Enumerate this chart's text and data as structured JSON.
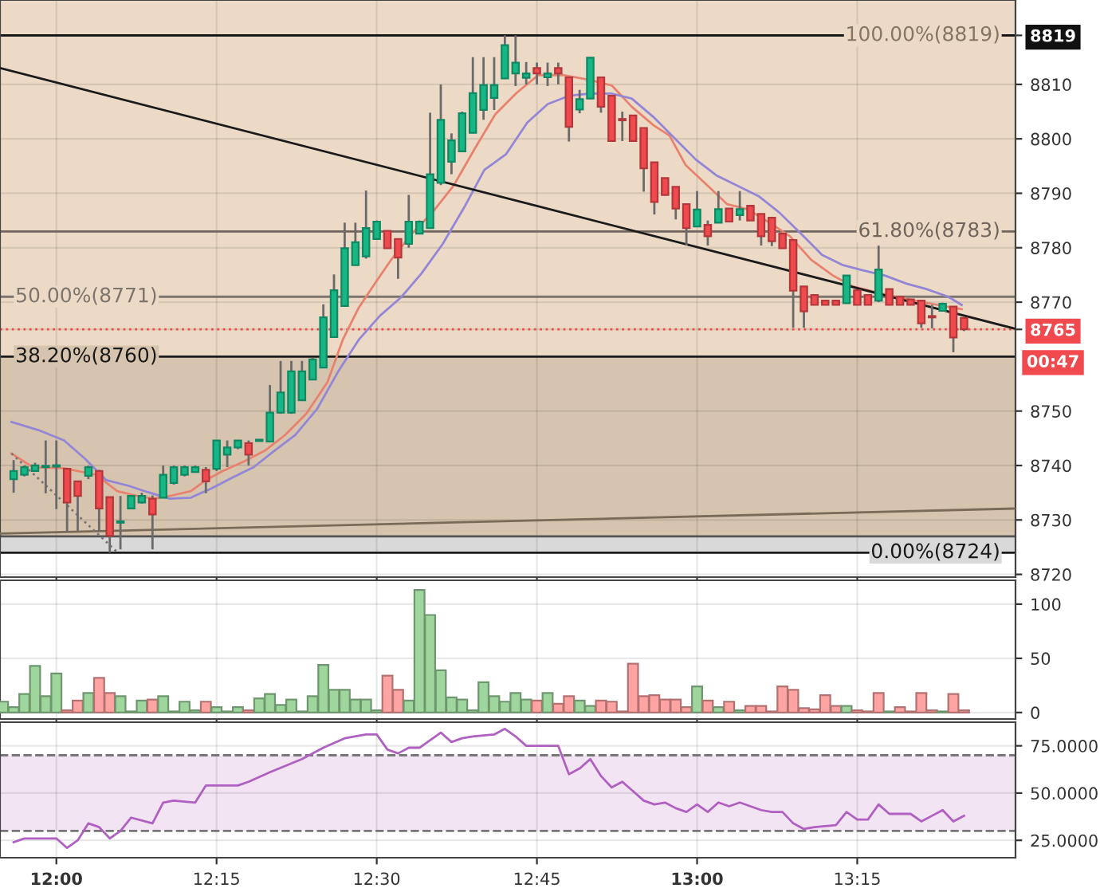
{
  "chart_data": [
    {
      "type": "candlestick",
      "tick_labels": "y",
      "grid": true,
      "legend": false,
      "xlim": [
        11.912,
        13.497
      ],
      "ylim": [
        8719.5,
        8825.5
      ],
      "xticks": [
        {
          "value": 12,
          "label": null
        },
        {
          "value": 12.25,
          "label": null
        },
        {
          "value": 12.5,
          "label": null
        },
        {
          "value": 12.75,
          "label": null
        },
        {
          "value": 13,
          "label": null
        },
        {
          "value": 13.25,
          "label": null
        }
      ],
      "yticks": [
        8720,
        8730,
        8740,
        8750,
        8765,
        8770,
        8780,
        8790,
        8800,
        8810,
        8819
      ],
      "x": [
        11.9333,
        11.95,
        11.9667,
        11.9833,
        12,
        12.0167,
        12.0333,
        12.05,
        12.0667,
        12.0833,
        12.1,
        12.1167,
        12.1333,
        12.15,
        12.1667,
        12.1833,
        12.2,
        12.2167,
        12.2333,
        12.25,
        12.2667,
        12.2833,
        12.3,
        12.3167,
        12.3333,
        12.35,
        12.3667,
        12.3833,
        12.4,
        12.4167,
        12.4333,
        12.45,
        12.4667,
        12.4833,
        12.5,
        12.5167,
        12.5333,
        12.55,
        12.5667,
        12.5833,
        12.6,
        12.6167,
        12.6333,
        12.65,
        12.6667,
        12.6833,
        12.7,
        12.7167,
        12.7333,
        12.75,
        12.7667,
        12.7833,
        12.8,
        12.8167,
        12.8333,
        12.85,
        12.8667,
        12.8833,
        12.9,
        12.9167,
        12.9333,
        12.95,
        12.9667,
        12.9833,
        13,
        13.0167,
        13.0333,
        13.05,
        13.0667,
        13.0833,
        13.1,
        13.1167,
        13.1333,
        13.15,
        13.1667,
        13.1833,
        13.2,
        13.2167,
        13.2333,
        13.25,
        13.2667,
        13.2833,
        13.3,
        13.3167,
        13.3333,
        13.35,
        13.3667,
        13.3833,
        13.4,
        13.4167
      ],
      "ohlc": [
        [
          8737.5,
          8741,
          8735,
          8739
        ],
        [
          8738.3,
          8740,
          8738,
          8739.7
        ],
        [
          8739,
          8740.5,
          8739,
          8740
        ],
        [
          8739.7,
          8744.6,
          8734.9,
          8739.8
        ],
        [
          8739.8,
          8744.6,
          8732,
          8739.9
        ],
        [
          8739.4,
          8739.4,
          8727.8,
          8733.2
        ],
        [
          8737.1,
          8737.1,
          8728,
          8734.4
        ],
        [
          8738.1,
          8740,
          8737.5,
          8739.7
        ],
        [
          8739,
          8739.2,
          8727.8,
          8732.1
        ],
        [
          8734.2,
          8734.2,
          8724,
          8727.1
        ],
        [
          8729.5,
          8734.4,
          8724.6,
          8729.6
        ],
        [
          8732.1,
          8734.4,
          8732,
          8734.4
        ],
        [
          8733.2,
          8735,
          8733,
          8734.4
        ],
        [
          8733.9,
          8734.5,
          8724.6,
          8731
        ],
        [
          8734.1,
          8740,
          8734,
          8738.3
        ],
        [
          8736.8,
          8740,
          8736.5,
          8739.7
        ],
        [
          8738.3,
          8740,
          8738,
          8739.7
        ],
        [
          8738.8,
          8740,
          8738.8,
          8739.7
        ],
        [
          8739.2,
          8739.7,
          8734.9,
          8737.1
        ],
        [
          8739.4,
          8744.6,
          8739,
          8744.6
        ],
        [
          8742,
          8744.6,
          8739.7,
          8743.3
        ],
        [
          8743.3,
          8744.6,
          8743,
          8744.6
        ],
        [
          8744.1,
          8744.6,
          8740,
          8742
        ],
        [
          8744.5,
          8744.8,
          8744.4,
          8744.7
        ],
        [
          8744.4,
          8754.8,
          8744.4,
          8749.7
        ],
        [
          8749.7,
          8759.2,
          8749.5,
          8753.4
        ],
        [
          8749.7,
          8759.2,
          8749.5,
          8757.3
        ],
        [
          8752,
          8759.2,
          8751.9,
          8757.3
        ],
        [
          8755.8,
          8759.8,
          8755.8,
          8759.5
        ],
        [
          8758,
          8769.6,
          8758,
          8767.2
        ],
        [
          8763.6,
          8775.1,
          8763.6,
          8772.2
        ],
        [
          8769.3,
          8784.6,
          8769.3,
          8779.9
        ],
        [
          8776.8,
          8784.6,
          8776.8,
          8781
        ],
        [
          8778.4,
          8790.5,
          8778,
          8783.6
        ],
        [
          8781.6,
          8785,
          8781.6,
          8784.8
        ],
        [
          8783.1,
          8783.1,
          8779.9,
          8779.9
        ],
        [
          8781.6,
          8781.6,
          8774.3,
          8778.2
        ],
        [
          8780.7,
          8789.7,
          8780,
          8784.8
        ],
        [
          8782.6,
          8785,
          8782.6,
          8784.8
        ],
        [
          8783.6,
          8804.8,
          8783.6,
          8793.5
        ],
        [
          8791.9,
          8810,
          8791.5,
          8803.5
        ],
        [
          8795.8,
          8801,
          8793.5,
          8799.7
        ],
        [
          8797.7,
          8805,
          8797.7,
          8804.7
        ],
        [
          8801.1,
          8815,
          8801,
          8808.4
        ],
        [
          8805.3,
          8815,
          8803.5,
          8809.9
        ],
        [
          8807.5,
          8815,
          8805.3,
          8809.9
        ],
        [
          8811.1,
          8819,
          8811,
          8817.2
        ],
        [
          8812,
          8819,
          8809.7,
          8814
        ],
        [
          8811.2,
          8814.1,
          8810,
          8812
        ],
        [
          8813,
          8814,
          8810,
          8812
        ],
        [
          8811.3,
          8814,
          8809.7,
          8812
        ],
        [
          8813,
          8814,
          8810,
          8812
        ],
        [
          8811.3,
          8811.3,
          8799.5,
          8802.2
        ],
        [
          8805.4,
          8809,
          8804.7,
          8807.3
        ],
        [
          8807.4,
          8814.9,
          8807.4,
          8814.9
        ],
        [
          8811.3,
          8811.3,
          8804.8,
          8805.9
        ],
        [
          8807.9,
          8808,
          8799.6,
          8799.6
        ],
        [
          8803.6,
          8805,
          8799.6,
          8803.4
        ],
        [
          8804.3,
          8804.3,
          8799.6,
          8799.6
        ],
        [
          8802,
          8802,
          8790.3,
          8794.6
        ],
        [
          8795.7,
          8795.7,
          8786.1,
          8788.4
        ],
        [
          8792.8,
          8792.8,
          8789.7,
          8789.7
        ],
        [
          8791.2,
          8791.2,
          8785.2,
          8787.2
        ],
        [
          8788,
          8788,
          8780.4,
          8783.6
        ],
        [
          8783.9,
          8790.4,
          8783.9,
          8787
        ],
        [
          8784.2,
          8785,
          8780.4,
          8782.1
        ],
        [
          8784.6,
          8790.4,
          8784.6,
          8787.1
        ],
        [
          8787.2,
          8787.2,
          8784.8,
          8784.8
        ],
        [
          8786,
          8790.4,
          8785,
          8787.1
        ],
        [
          8787.7,
          8787.7,
          8785,
          8785
        ],
        [
          8786.2,
          8786.2,
          8780.4,
          8782.1
        ],
        [
          8785.5,
          8785.5,
          8780.3,
          8781.2
        ],
        [
          8782.6,
          8782.6,
          8779.9,
          8779.9
        ],
        [
          8781.4,
          8781.4,
          8765.3,
          8772.1
        ],
        [
          8772.9,
          8772.9,
          8765.3,
          8768.3
        ],
        [
          8771.3,
          8771.3,
          8769.5,
          8769.5
        ],
        [
          8770.3,
          8770.3,
          8769.5,
          8769.5
        ],
        [
          8770.3,
          8770.3,
          8769.5,
          8769.5
        ],
        [
          8769.8,
          8774.9,
          8769.8,
          8774.9
        ],
        [
          8772.2,
          8772.2,
          8769.5,
          8769.5
        ],
        [
          8771.3,
          8771.3,
          8769.5,
          8769.5
        ],
        [
          8770.3,
          8780.4,
          8770,
          8776
        ],
        [
          8772.4,
          8772.4,
          8769.5,
          8769.5
        ],
        [
          8771,
          8771,
          8769.5,
          8769.5
        ],
        [
          8770.5,
          8770.5,
          8769.5,
          8769.5
        ],
        [
          8770.3,
          8770.3,
          8765.3,
          8766.1
        ],
        [
          8767.3,
          8769.5,
          8765.2,
          8767.2
        ],
        [
          8768.4,
          8769.9,
          8768.4,
          8769.7
        ],
        [
          8769.2,
          8769.2,
          8760.8,
          8763.5
        ],
        [
          8767.1,
          8767.1,
          8764.7,
          8765
        ]
      ],
      "colors": [
        "#16b685",
        "#16b685",
        "#16b685",
        "#16b685",
        "#16b685",
        "#f04a4f",
        "#f04a4f",
        "#16b685",
        "#f04a4f",
        "#f04a4f",
        "#16b685",
        "#16b685",
        "#16b685",
        "#f04a4f",
        "#16b685",
        "#16b685",
        "#16b685",
        "#16b685",
        "#f04a4f",
        "#16b685",
        "#16b685",
        "#16b685",
        "#f04a4f",
        "#16b685",
        "#16b685",
        "#16b685",
        "#16b685",
        "#16b685",
        "#16b685",
        "#16b685",
        "#16b685",
        "#16b685",
        "#16b685",
        "#16b685",
        "#16b685",
        "#f04a4f",
        "#f04a4f",
        "#16b685",
        "#16b685",
        "#16b685",
        "#16b685",
        "#16b685",
        "#16b685",
        "#16b685",
        "#16b685",
        "#16b685",
        "#16b685",
        "#16b685",
        "#16b685",
        "#f04a4f",
        "#16b685",
        "#f04a4f",
        "#f04a4f",
        "#16b685",
        "#16b685",
        "#f04a4f",
        "#f04a4f",
        "#f04a4f",
        "#f04a4f",
        "#f04a4f",
        "#f04a4f",
        "#f04a4f",
        "#f04a4f",
        "#f04a4f",
        "#16b685",
        "#f04a4f",
        "#16b685",
        "#f04a4f",
        "#16b685",
        "#f04a4f",
        "#f04a4f",
        "#f04a4f",
        "#f04a4f",
        "#f04a4f",
        "#f04a4f",
        "#f04a4f",
        "#f04a4f",
        "#f04a4f",
        "#16b685",
        "#f04a4f",
        "#f04a4f",
        "#16b685",
        "#f04a4f",
        "#f04a4f",
        "#f04a4f",
        "#f04a4f",
        "#f04a4f",
        "#16b685",
        "#f04a4f",
        "#f04a4f"
      ],
      "series": [
        {
          "type": "line",
          "color": "#e8826e",
          "x": [
            11.93,
            11.963,
            12.012,
            12.062,
            12.095,
            12.127,
            12.152,
            12.177,
            12.21,
            12.233,
            12.258,
            12.292,
            12.325,
            12.357,
            12.39,
            12.423,
            12.447,
            12.472,
            12.497,
            12.522,
            12.555,
            12.587,
            12.62,
            12.653,
            12.685,
            12.718,
            12.752,
            12.792,
            12.833,
            12.867,
            12.898,
            12.932,
            12.957,
            12.982,
            13.013,
            13.047,
            13.08,
            13.113,
            13.145,
            13.178,
            13.212,
            13.243,
            13.277,
            13.31,
            13.343,
            13.375,
            13.413
          ],
          "values": [
            8742.2,
            8739.7,
            8739.5,
            8738.3,
            8735.3,
            8734.4,
            8733.9,
            8734.4,
            8735.3,
            8737.3,
            8738.9,
            8740.7,
            8742.7,
            8745.6,
            8749.5,
            8755.3,
            8763.1,
            8769,
            8773.4,
            8777.7,
            8782.6,
            8786.5,
            8791.4,
            8798.2,
            8804.5,
            8808.4,
            8811.7,
            8811.7,
            8810.8,
            8809.8,
            8805.9,
            8802.5,
            8800.6,
            8795.2,
            8791.8,
            8788,
            8787,
            8784.6,
            8782.1,
            8777.8,
            8774.9,
            8772.9,
            8771.9,
            8771,
            8770.2,
            8769.5,
            8768.7
          ]
        },
        {
          "type": "line",
          "color": "#9386d6",
          "x": [
            11.93,
            11.972,
            12.012,
            12.045,
            12.078,
            12.112,
            12.143,
            12.177,
            12.21,
            12.242,
            12.275,
            12.308,
            12.34,
            12.373,
            12.407,
            12.44,
            12.472,
            12.505,
            12.538,
            12.57,
            12.603,
            12.637,
            12.668,
            12.702,
            12.735,
            12.767,
            12.8,
            12.833,
            12.867,
            12.898,
            12.932,
            12.965,
            12.998,
            13.03,
            13.063,
            13.097,
            13.128,
            13.162,
            13.195,
            13.228,
            13.26,
            13.293,
            13.327,
            13.358,
            13.392,
            13.413
          ],
          "values": [
            8748,
            8746.5,
            8744.6,
            8741.2,
            8737.3,
            8736.3,
            8735.1,
            8733.9,
            8734.1,
            8735.8,
            8737.8,
            8739.7,
            8742.7,
            8745.6,
            8750.4,
            8757.3,
            8763.1,
            8767.5,
            8770.9,
            8775.3,
            8780.7,
            8787.5,
            8794.3,
            8797.2,
            8803,
            8806.4,
            8807.9,
            8808.3,
            8808.3,
            8807.4,
            8804,
            8800.1,
            8796.2,
            8793.3,
            8791.4,
            8789.4,
            8786.5,
            8782.6,
            8778.7,
            8776.8,
            8775.8,
            8774.9,
            8773.4,
            8772.4,
            8771,
            8769.5
          ]
        },
        {
          "type": "line",
          "color": "#1a1a1a",
          "x": [
            11.912,
            13.497
          ],
          "values": [
            8813,
            8765.1
          ]
        },
        {
          "type": "line",
          "color": "#7a6a58",
          "x": [
            11.912,
            13.497
          ],
          "values": [
            8727.5,
            8732.1
          ]
        },
        {
          "type": "line",
          "color": "#777777",
          "line_style": "dotted",
          "x": [
            11.93,
            12.095
          ],
          "values": [
            8742.2,
            8724.1
          ]
        }
      ],
      "bands": [
        {
          "axis": "y",
          "from": 8760,
          "to": 8825.5,
          "color": "#ecdac6"
        },
        {
          "axis": "y",
          "from": 8727,
          "to": 8760,
          "color": "#d6c4ae"
        },
        {
          "axis": "y",
          "from": 8724,
          "to": 8727,
          "color": "#d9d9d9"
        }
      ],
      "ref_lines": [
        {
          "axis": "y",
          "value": 8819,
          "label": "100.00%(8819)",
          "color": "#857565"
        },
        {
          "axis": "y",
          "value": 8783,
          "label": "61.80%(8783)",
          "color": "#6f655c"
        },
        {
          "axis": "y",
          "value": 8771,
          "label": "50.00%(8771)",
          "color": "#7d756d"
        },
        {
          "axis": "y",
          "value": 8760,
          "label": "38.20%(8760)",
          "color": "#1a1a1a"
        },
        {
          "axis": "y",
          "value": 8727,
          "color": "#555555"
        },
        {
          "axis": "y",
          "value": 8724,
          "label": "0.00%(8724)",
          "color": "#1a1a1a"
        },
        {
          "axis": "y",
          "value": 8819,
          "color": "#111111"
        },
        {
          "axis": "y",
          "value": 8765,
          "color": "#f04a4f",
          "line_style": "dotted"
        }
      ],
      "annotations": [
        "00:47"
      ]
    },
    {
      "type": "bar",
      "tick_labels": "y",
      "grid": true,
      "legend": false,
      "xlim": [
        11.912,
        13.497
      ],
      "ylim": [
        -6,
        122
      ],
      "xticks": [
        {
          "value": 12,
          "label": null
        },
        {
          "value": 12.25,
          "label": null
        },
        {
          "value": 12.5,
          "label": null
        },
        {
          "value": 12.75,
          "label": null
        },
        {
          "value": 13,
          "label": null
        },
        {
          "value": 13.25,
          "label": null
        }
      ],
      "yticks": [
        0,
        50,
        100
      ],
      "x": [
        11.9167,
        11.9333,
        11.95,
        11.9667,
        11.9833,
        12,
        12.0167,
        12.0333,
        12.05,
        12.0667,
        12.0833,
        12.1,
        12.1167,
        12.1333,
        12.15,
        12.1667,
        12.1833,
        12.2,
        12.2167,
        12.2333,
        12.25,
        12.2667,
        12.2833,
        12.3,
        12.3167,
        12.3333,
        12.35,
        12.3667,
        12.3833,
        12.4,
        12.4167,
        12.4333,
        12.45,
        12.4667,
        12.4833,
        12.5,
        12.5167,
        12.5333,
        12.55,
        12.5667,
        12.5833,
        12.6,
        12.6167,
        12.6333,
        12.65,
        12.6667,
        12.6833,
        12.7,
        12.7167,
        12.7333,
        12.75,
        12.7667,
        12.7833,
        12.8,
        12.8167,
        12.8333,
        12.85,
        12.8667,
        12.8833,
        12.9,
        12.9167,
        12.9333,
        12.95,
        12.9667,
        12.9833,
        13,
        13.0167,
        13.0333,
        13.05,
        13.0667,
        13.0833,
        13.1,
        13.1167,
        13.1333,
        13.15,
        13.1667,
        13.1833,
        13.2,
        13.2167,
        13.2333,
        13.25,
        13.2667,
        13.2833,
        13.3,
        13.3167,
        13.3333,
        13.35,
        13.3667,
        13.3833,
        13.4,
        13.4167
      ],
      "values": [
        10,
        5,
        17,
        43,
        15,
        36,
        2,
        11,
        18,
        32,
        18,
        15,
        1,
        11,
        12,
        15,
        1,
        10,
        2,
        10,
        5,
        1,
        5,
        2,
        13,
        17,
        7,
        12,
        1,
        15,
        44,
        21,
        21,
        12,
        12,
        2,
        34,
        21,
        11,
        113,
        90,
        39,
        14,
        12,
        2,
        28,
        15,
        10,
        18,
        12,
        11,
        18,
        8,
        15,
        11,
        6,
        11,
        10,
        1,
        45,
        15,
        16,
        12,
        12,
        5,
        24,
        11,
        5,
        10,
        2,
        6,
        6,
        1,
        24,
        21,
        4,
        3,
        16,
        6,
        6,
        2,
        1,
        18,
        1,
        5,
        1,
        18,
        2,
        1,
        17,
        2
      ],
      "colors": [
        "#9ed69e",
        "#9ed69e",
        "#9ed69e",
        "#9ed69e",
        "#9ed69e",
        "#9ed69e",
        "#ffa3a3",
        "#ffa3a3",
        "#9ed69e",
        "#ffa3a3",
        "#ffa3a3",
        "#9ed69e",
        "#9ed69e",
        "#9ed69e",
        "#ffa3a3",
        "#9ed69e",
        "#9ed69e",
        "#9ed69e",
        "#9ed69e",
        "#ffa3a3",
        "#9ed69e",
        "#9ed69e",
        "#9ed69e",
        "#ffa3a3",
        "#9ed69e",
        "#9ed69e",
        "#9ed69e",
        "#9ed69e",
        "#9ed69e",
        "#9ed69e",
        "#9ed69e",
        "#9ed69e",
        "#9ed69e",
        "#9ed69e",
        "#9ed69e",
        "#9ed69e",
        "#ffa3a3",
        "#ffa3a3",
        "#9ed69e",
        "#9ed69e",
        "#9ed69e",
        "#9ed69e",
        "#9ed69e",
        "#9ed69e",
        "#9ed69e",
        "#9ed69e",
        "#9ed69e",
        "#9ed69e",
        "#9ed69e",
        "#9ed69e",
        "#ffa3a3",
        "#9ed69e",
        "#ffa3a3",
        "#ffa3a3",
        "#9ed69e",
        "#9ed69e",
        "#ffa3a3",
        "#ffa3a3",
        "#ffa3a3",
        "#ffa3a3",
        "#ffa3a3",
        "#ffa3a3",
        "#ffa3a3",
        "#ffa3a3",
        "#ffa3a3",
        "#9ed69e",
        "#ffa3a3",
        "#9ed69e",
        "#ffa3a3",
        "#9ed69e",
        "#ffa3a3",
        "#ffa3a3",
        "#ffa3a3",
        "#ffa3a3",
        "#ffa3a3",
        "#ffa3a3",
        "#ffa3a3",
        "#ffa3a3",
        "#ffa3a3",
        "#9ed69e",
        "#ffa3a3",
        "#ffa3a3",
        "#ffa3a3",
        "#9ed69e",
        "#ffa3a3",
        "#ffa3a3",
        "#ffa3a3",
        "#ffa3a3",
        "#9ed69e",
        "#ffa3a3",
        "#ffa3a3"
      ]
    },
    {
      "type": "line",
      "grid": true,
      "legend": false,
      "color": "#b060c0",
      "xlim": [
        11.912,
        13.497
      ],
      "ylim": [
        15.8,
        87.5
      ],
      "xticks": [
        {
          "value": 12,
          "label": "12:00"
        },
        {
          "value": 12.25,
          "label": "12:15"
        },
        {
          "value": 12.5,
          "label": "12:30"
        },
        {
          "value": 12.75,
          "label": "12:45"
        },
        {
          "value": 13,
          "label": "13:00"
        },
        {
          "value": 13.25,
          "label": "13:15"
        }
      ],
      "yticks": [
        {
          "value": 25,
          "label": "25.0000"
        },
        {
          "value": 50,
          "label": "50.0000"
        },
        {
          "value": 75,
          "label": "75.0000"
        }
      ],
      "x": [
        11.9333,
        11.95,
        12,
        12.0167,
        12.0333,
        12.05,
        12.0667,
        12.0833,
        12.1,
        12.1167,
        12.15,
        12.1667,
        12.1833,
        12.2167,
        12.2333,
        12.25,
        12.2833,
        12.3,
        12.3333,
        12.3833,
        12.4167,
        12.45,
        12.4833,
        12.5,
        12.5167,
        12.5333,
        12.55,
        12.5667,
        12.5833,
        12.6,
        12.6167,
        12.6333,
        12.65,
        12.6833,
        12.7,
        12.7167,
        12.7333,
        12.7833,
        12.8,
        12.8167,
        12.8333,
        12.85,
        12.8667,
        12.8833,
        12.9,
        12.9167,
        12.9333,
        12.95,
        12.9667,
        12.9833,
        13,
        13.0167,
        13.0333,
        13.05,
        13.0667,
        13.0833,
        13.1,
        13.1167,
        13.1333,
        13.15,
        13.1667,
        13.1833,
        13.2167,
        13.2333,
        13.25,
        13.2667,
        13.2833,
        13.3,
        13.3333,
        13.35,
        13.3667,
        13.3833,
        13.4,
        13.4167
      ],
      "values": [
        24,
        26,
        26,
        21,
        25,
        34,
        32,
        26,
        30,
        37,
        34,
        45,
        46,
        45,
        54,
        54,
        54,
        56,
        61,
        68,
        74,
        79,
        81,
        81,
        73,
        71,
        74,
        74,
        78,
        82,
        77,
        79,
        80,
        81,
        84,
        80,
        75,
        75,
        60,
        63,
        68,
        59,
        53,
        56,
        51,
        46,
        44,
        45,
        42,
        40,
        44,
        40,
        45,
        43,
        45,
        43,
        41,
        40,
        40,
        34,
        31,
        32,
        33,
        40,
        36,
        36,
        44,
        39,
        39,
        35,
        38,
        41,
        35,
        38
      ],
      "bands": [
        {
          "axis": "y",
          "from": 30,
          "to": 70,
          "color": "#f2e4f2"
        }
      ],
      "ref_lines": [
        {
          "axis": "y",
          "value": 70,
          "color": "#777777",
          "line_style": "dashed"
        },
        {
          "axis": "y",
          "value": 30,
          "color": "#777777",
          "line_style": "dashed"
        }
      ]
    }
  ]
}
